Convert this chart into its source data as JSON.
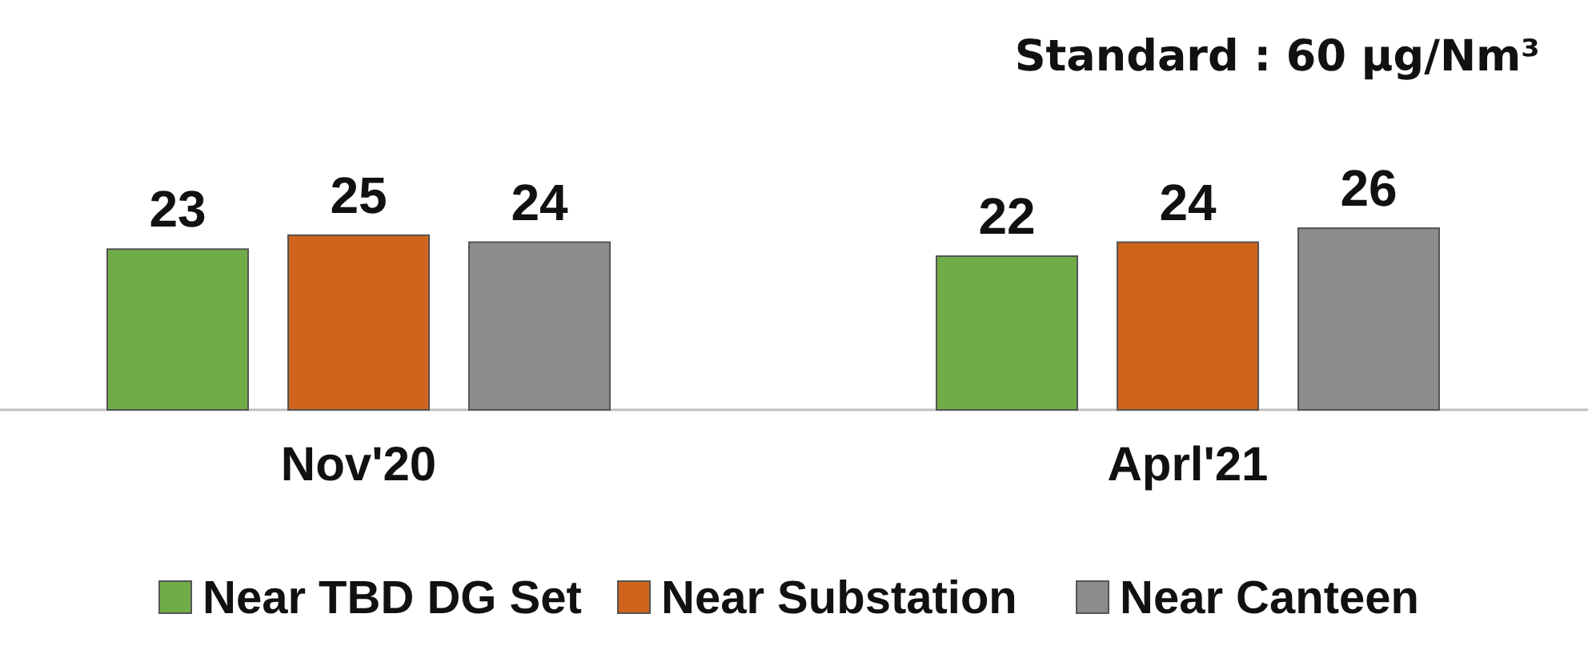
{
  "chart_data": {
    "type": "bar",
    "annotations": [
      "Standard : 60 µg/Nm³"
    ],
    "categories": [
      "Nov'20",
      "Aprl'21"
    ],
    "series": [
      {
        "name": "Near TBD DG Set",
        "color": "#70ad47",
        "values": [
          23,
          22
        ]
      },
      {
        "name": "Near Substation",
        "color": "#d0641c",
        "values": [
          25,
          24
        ]
      },
      {
        "name": "Near Canteen",
        "color": "#8c8c8c",
        "values": [
          24,
          26
        ]
      }
    ],
    "relative": false,
    "data_labels": true,
    "legend": "bottom"
  }
}
